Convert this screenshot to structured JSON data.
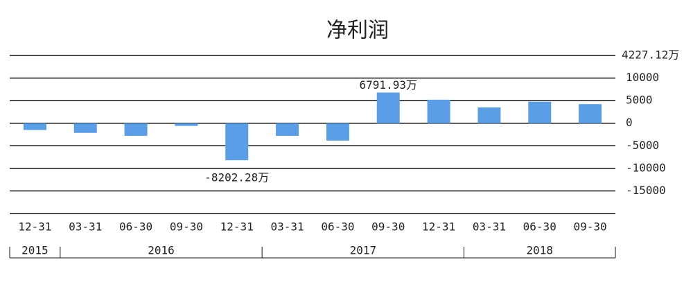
{
  "chart_data": {
    "type": "bar",
    "title": "净利润",
    "groups": [
      {
        "name": "2015",
        "categories": [
          "12-31"
        ]
      },
      {
        "name": "2016",
        "categories": [
          "03-31",
          "06-30",
          "09-30",
          "12-31"
        ]
      },
      {
        "name": "2017",
        "categories": [
          "03-31",
          "06-30",
          "09-30",
          "12-31"
        ]
      },
      {
        "name": "2018",
        "categories": [
          "03-31",
          "06-30",
          "09-30"
        ]
      }
    ],
    "values": [
      -1500,
      -2150,
      -2800,
      -600,
      -8202.28,
      -2800,
      -3850,
      6791.93,
      5200,
      3500,
      4750,
      4227.12
    ],
    "value_labels": [
      null,
      null,
      null,
      null,
      "-8202.28万",
      null,
      null,
      "6791.93万",
      null,
      null,
      null,
      "4227.12万"
    ],
    "color": "#5b9ee8",
    "ylim": [
      -20000,
      15000
    ],
    "yticks": [
      10000,
      5000,
      0,
      -5000,
      -10000,
      -15000
    ],
    "grid": true
  }
}
